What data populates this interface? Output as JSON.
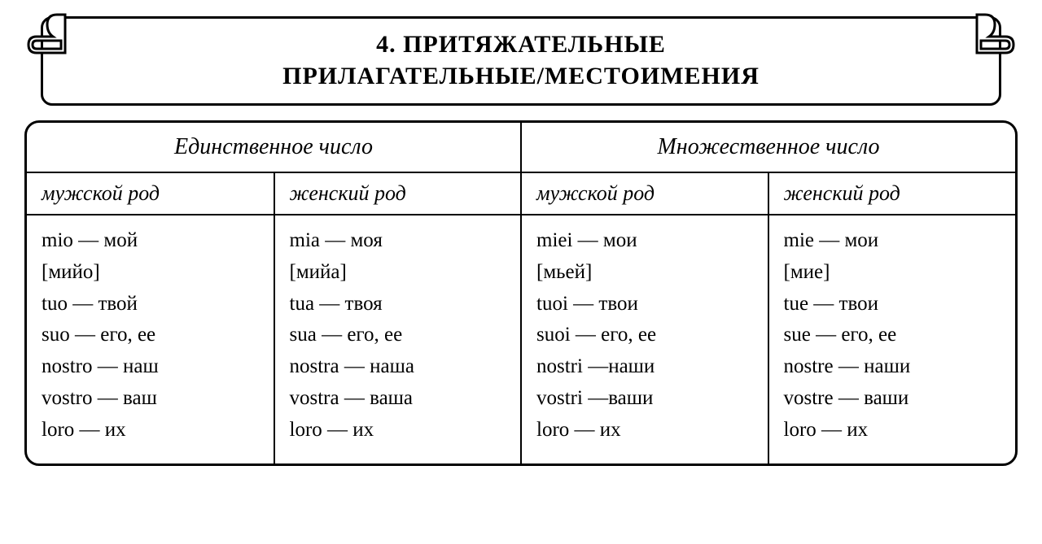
{
  "title_line1": "4. ПРИТЯЖАТЕЛЬНЫЕ",
  "title_line2": "ПРИЛАГАТЕЛЬНЫЕ/МЕСТОИМЕНИЯ",
  "headers": {
    "singular": "Единственное число",
    "plural": "Множественное число",
    "masc": "мужской род",
    "fem": "женский род"
  },
  "columns": {
    "sg_m": [
      {
        "it": "mio",
        "ru": "мой"
      },
      {
        "pron": "[мийо]"
      },
      {
        "it": "tuo",
        "ru": "твой"
      },
      {
        "it": "suo",
        "ru": "его, ее"
      },
      {
        "it": "nostro",
        "ru": "наш"
      },
      {
        "it": "vostro",
        "ru": "ваш"
      },
      {
        "it": "loro",
        "ru": "их"
      }
    ],
    "sg_f": [
      {
        "it": "mia",
        "ru": "моя"
      },
      {
        "pron": "[мийа]"
      },
      {
        "it": "tua",
        "ru": "твоя"
      },
      {
        "it": "sua",
        "ru": "его, ее"
      },
      {
        "it": "nostra",
        "ru": "наша"
      },
      {
        "it": "vostra",
        "ru": "ваша"
      },
      {
        "it": "loro",
        "ru": "их"
      }
    ],
    "pl_m": [
      {
        "it": "miei",
        "ru": "мои"
      },
      {
        "pron": "[мьей]"
      },
      {
        "it": "tuoi",
        "ru": "твои"
      },
      {
        "it": "suoi",
        "ru": "его, ее"
      },
      {
        "it": "nostri",
        "ru": "наши",
        "tight": true
      },
      {
        "it": "vostri",
        "ru": "ваши",
        "tight": true
      },
      {
        "it": "loro",
        "ru": "их"
      }
    ],
    "pl_f": [
      {
        "it": "mie",
        "ru": "мои"
      },
      {
        "pron": "[мие]"
      },
      {
        "it": "tue",
        "ru": "твои"
      },
      {
        "it": "sue",
        "ru": "его, ее"
      },
      {
        "it": "nostre",
        "ru": "наши"
      },
      {
        "it": "vostre",
        "ru": "ваши"
      },
      {
        "it": "loro",
        "ru": "их"
      }
    ]
  },
  "style": {
    "border_color": "#000000",
    "background": "#ffffff",
    "title_fontsize": 30,
    "header_fontsize": 28,
    "subheader_fontsize": 26,
    "cell_fontsize": 25,
    "dash": " — "
  }
}
